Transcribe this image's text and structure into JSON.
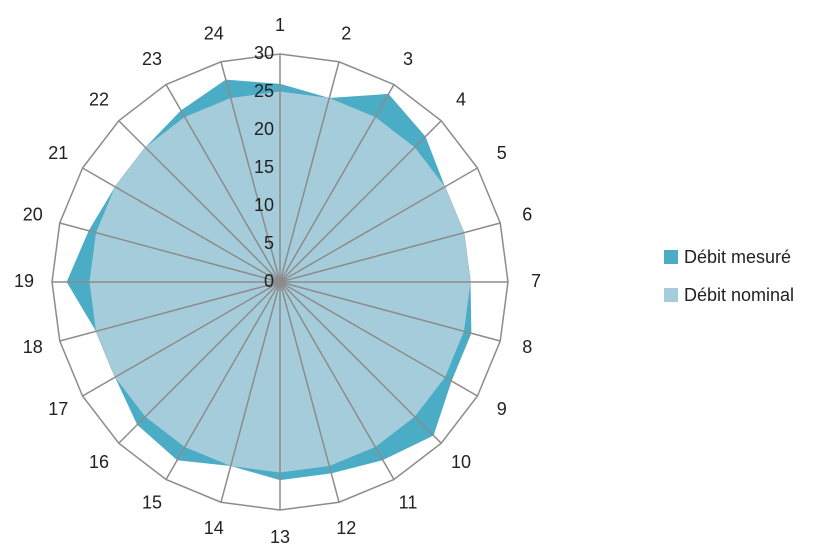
{
  "chart_data": {
    "type": "radar",
    "categories": [
      "1",
      "2",
      "3",
      "4",
      "5",
      "6",
      "7",
      "8",
      "9",
      "10",
      "11",
      "12",
      "13",
      "14",
      "15",
      "16",
      "17",
      "18",
      "19",
      "20",
      "21",
      "22",
      "23",
      "24"
    ],
    "radial_ticks": [
      "0",
      "5",
      "10",
      "15",
      "20",
      "25",
      "30"
    ],
    "rmax": 30,
    "series": [
      {
        "name": "Débit mesuré",
        "color": "#4BACC6",
        "values": [
          26,
          25,
          28.5,
          27,
          25,
          25,
          25,
          26,
          26,
          28.5,
          27,
          26,
          26,
          25,
          27,
          26.5,
          25,
          25,
          28,
          26,
          25,
          25,
          26,
          27.5
        ]
      },
      {
        "name": "Débit nominal",
        "color": "#A5CCDA",
        "values": [
          25,
          25,
          25,
          25,
          25,
          25,
          25,
          25,
          25,
          25,
          25,
          25,
          25,
          25,
          25,
          25,
          25,
          25,
          25,
          25,
          25,
          25,
          25,
          25
        ]
      }
    ],
    "grid": true,
    "legend": "right"
  }
}
